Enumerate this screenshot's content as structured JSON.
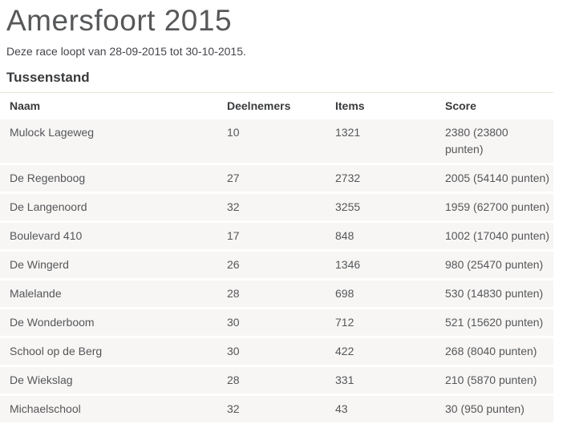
{
  "page": {
    "title": "Amersfoort 2015",
    "subtitle": "Deze race loopt van 28-09-2015 tot 30-10-2015.",
    "section_heading": "Tussenstand"
  },
  "table": {
    "columns": [
      "Naam",
      "Deelnemers",
      "Items",
      "Score"
    ],
    "rows": [
      {
        "naam": "Mulock Lageweg",
        "deelnemers": "10",
        "items": "1321",
        "score": "2380 (23800\npunten)"
      },
      {
        "naam": "De Regenboog",
        "deelnemers": "27",
        "items": "2732",
        "score": "2005 (54140 punten)"
      },
      {
        "naam": "De Langenoord",
        "deelnemers": "32",
        "items": "3255",
        "score": "1959 (62700 punten)"
      },
      {
        "naam": "Boulevard 410",
        "deelnemers": "17",
        "items": "848",
        "score": "1002 (17040 punten)"
      },
      {
        "naam": "De Wingerd",
        "deelnemers": "26",
        "items": "1346",
        "score": "980 (25470 punten)"
      },
      {
        "naam": "Malelande",
        "deelnemers": "28",
        "items": "698",
        "score": "530 (14830 punten)"
      },
      {
        "naam": "De Wonderboom",
        "deelnemers": "30",
        "items": "712",
        "score": "521 (15620 punten)"
      },
      {
        "naam": "School op de Berg",
        "deelnemers": "30",
        "items": "422",
        "score": "268 (8040 punten)"
      },
      {
        "naam": "De Wiekslag",
        "deelnemers": "28",
        "items": "331",
        "score": "210 (5870 punten)"
      },
      {
        "naam": "Michaelschool",
        "deelnemers": "32",
        "items": "43",
        "score": "30 (950 punten)"
      }
    ]
  },
  "colors": {
    "title_text": "#57585a",
    "heading_text": "#3a3b3d",
    "body_text": "#44454a",
    "cell_text": "#55565a",
    "row_bg": "#f7f6f4",
    "table_top_border": "#e9e2d5"
  }
}
